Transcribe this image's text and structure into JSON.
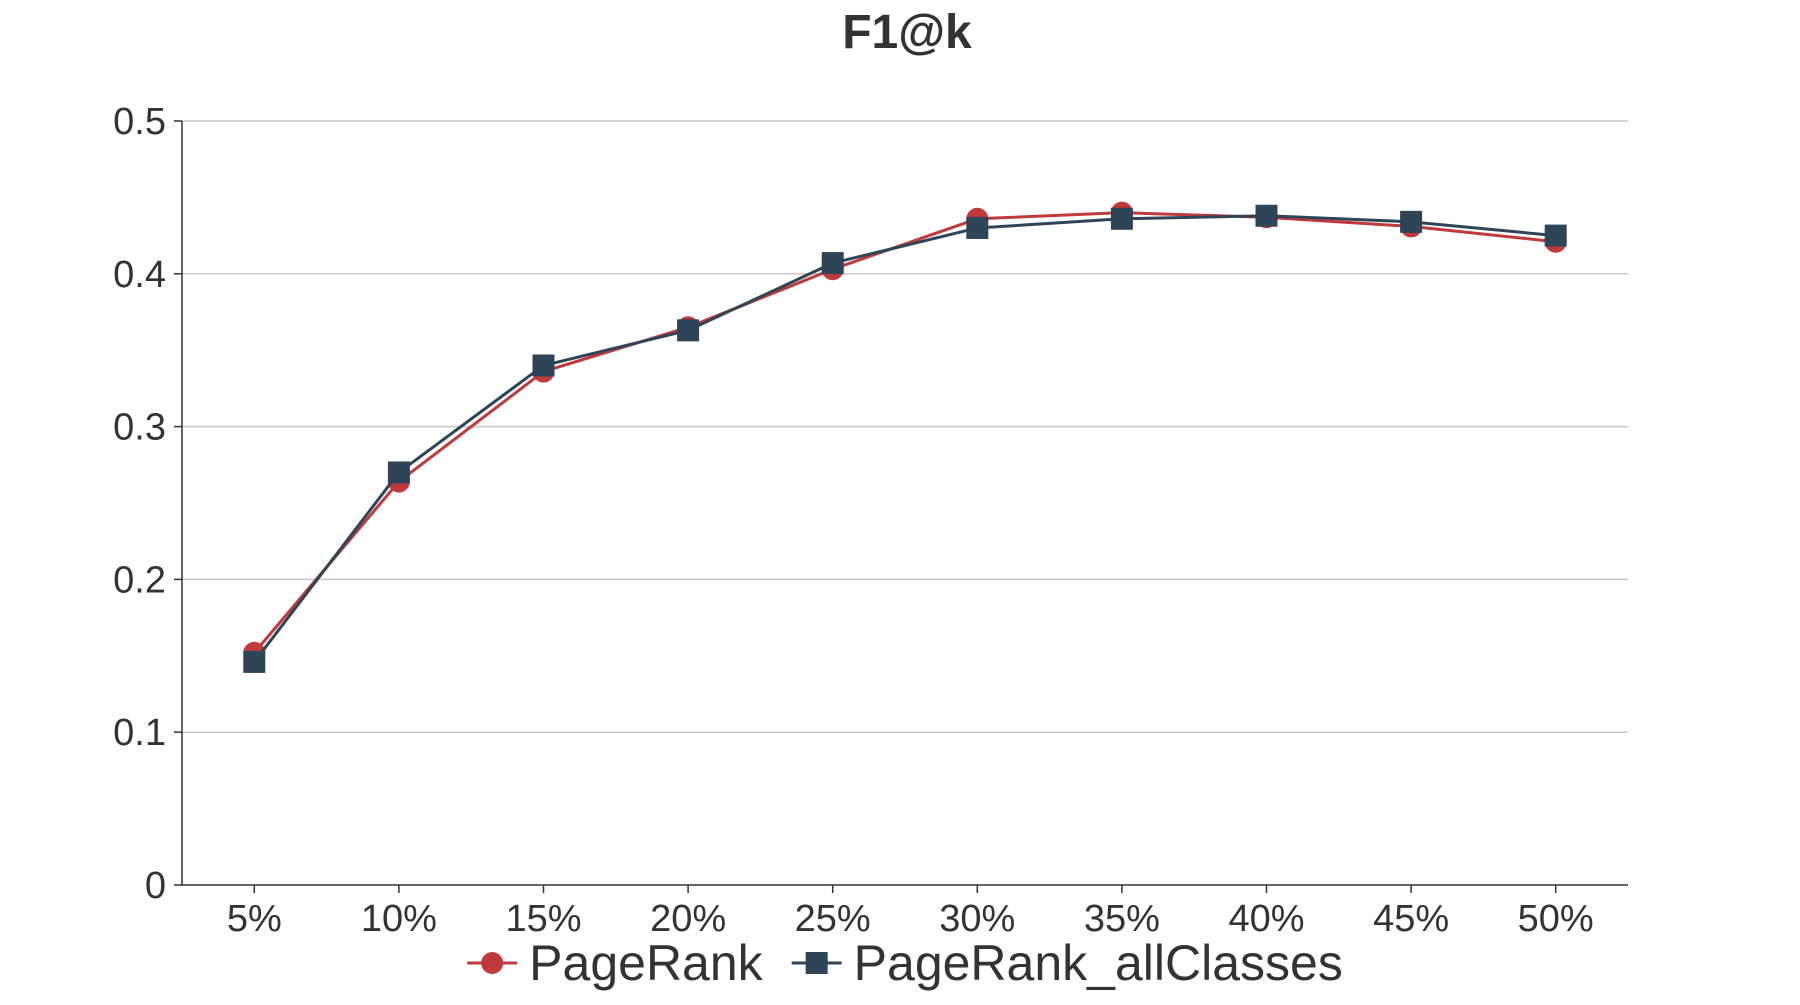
{
  "chart_data": {
    "type": "line",
    "title": "F1@k",
    "xlabel": "",
    "ylabel": "",
    "categories": [
      "5%",
      "10%",
      "15%",
      "20%",
      "25%",
      "30%",
      "35%",
      "40%",
      "45%",
      "50%"
    ],
    "ylim": [
      0,
      0.5
    ],
    "yticks": [
      "0",
      "0.1",
      "0.2",
      "0.3",
      "0.4",
      "0.5"
    ],
    "grid": true,
    "legend_position": "bottom",
    "series": [
      {
        "name": "PageRank",
        "marker": "circle",
        "color": "#c0393b",
        "values": [
          0.152,
          0.264,
          0.336,
          0.365,
          0.403,
          0.436,
          0.44,
          0.437,
          0.431,
          0.421
        ]
      },
      {
        "name": "PageRank_allClasses",
        "marker": "square",
        "color": "#2e4557",
        "values": [
          0.146,
          0.27,
          0.34,
          0.363,
          0.407,
          0.43,
          0.436,
          0.438,
          0.434,
          0.425
        ]
      }
    ]
  }
}
